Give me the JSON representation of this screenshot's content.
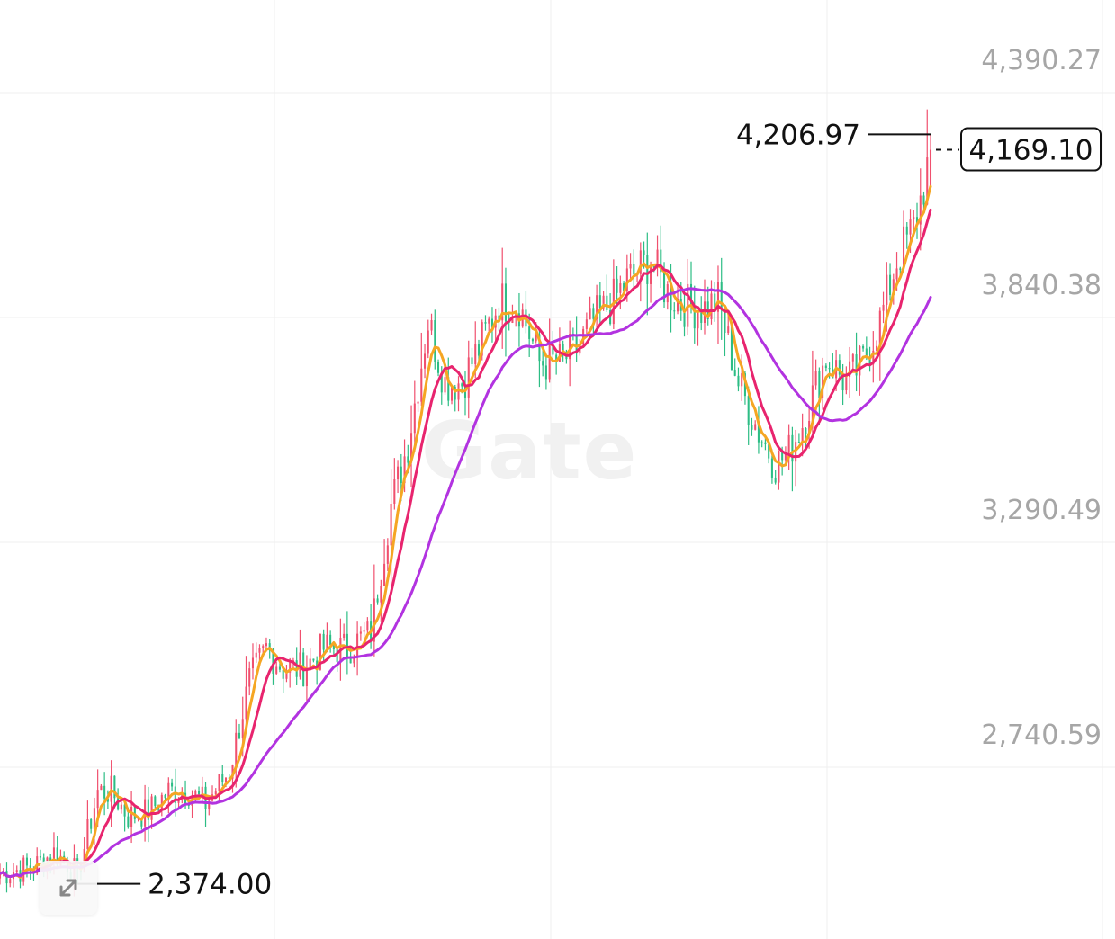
{
  "watermark": "Gate",
  "colors": {
    "up_candle": "#f0506e",
    "down_candle": "#2dbd85",
    "ma_short": "#f5a623",
    "ma_mid": "#e8246e",
    "ma_long": "#b233e0",
    "grid": "#efefef",
    "axis_text": "#a6a6a6",
    "annotation": "#111111"
  },
  "controls": {
    "expand_icon": "expand-arrows-icon"
  },
  "chart_data": {
    "type": "candlestick",
    "title": "",
    "xlabel": "",
    "ylabel": "",
    "ylim": [
      2300,
      4500
    ],
    "grid": "on",
    "y_ticks": [
      {
        "value": 4390.27,
        "label": "4,390.27"
      },
      {
        "value": 3840.38,
        "label": "3,840.38"
      },
      {
        "value": 3290.49,
        "label": "3,290.49"
      },
      {
        "value": 2740.59,
        "label": "2,740.59"
      }
    ],
    "high_marker": {
      "value": 4206.97,
      "label": "4,206.97"
    },
    "low_marker": {
      "value": 2374.0,
      "label": "2,374.00"
    },
    "last_price": {
      "value": 4169.1,
      "label": "4,169.10"
    },
    "anchors": [
      [
        0,
        2400
      ],
      [
        10,
        2415
      ],
      [
        16,
        2450
      ],
      [
        20,
        2425
      ],
      [
        23,
        2395
      ],
      [
        29,
        2600
      ],
      [
        33,
        2600
      ],
      [
        38,
        2540
      ],
      [
        44,
        2550
      ],
      [
        50,
        2600
      ],
      [
        56,
        2600
      ],
      [
        61,
        2570
      ],
      [
        68,
        2650
      ],
      [
        74,
        2870
      ],
      [
        79,
        2950
      ],
      [
        84,
        2900
      ],
      [
        90,
        2900
      ],
      [
        96,
        2950
      ],
      [
        103,
        2950
      ],
      [
        110,
        2990
      ],
      [
        116,
        3300
      ],
      [
        121,
        3450
      ],
      [
        127,
        3750
      ],
      [
        132,
        3600
      ],
      [
        137,
        3600
      ],
      [
        143,
        3700
      ],
      [
        148,
        3800
      ],
      [
        154,
        3790
      ],
      [
        160,
        3650
      ],
      [
        166,
        3650
      ],
      [
        171,
        3680
      ],
      [
        176,
        3750
      ],
      [
        182,
        3800
      ],
      [
        186,
        3850
      ],
      [
        193,
        3900
      ],
      [
        198,
        3820
      ],
      [
        203,
        3790
      ],
      [
        209,
        3780
      ],
      [
        213,
        3800
      ],
      [
        219,
        3600
      ],
      [
        225,
        3480
      ],
      [
        230,
        3400
      ],
      [
        234,
        3430
      ],
      [
        238,
        3500
      ],
      [
        245,
        3660
      ],
      [
        251,
        3600
      ],
      [
        256,
        3650
      ],
      [
        261,
        3750
      ],
      [
        266,
        3900
      ],
      [
        271,
        3980
      ],
      [
        274,
        4080
      ],
      [
        276,
        4169.1
      ]
    ],
    "moving_averages": [
      {
        "name": "",
        "period": 5,
        "color": "#f5a623"
      },
      {
        "name": "",
        "period": 10,
        "color": "#e8246e"
      },
      {
        "name": "",
        "period": 30,
        "color": "#b233e0"
      }
    ]
  }
}
